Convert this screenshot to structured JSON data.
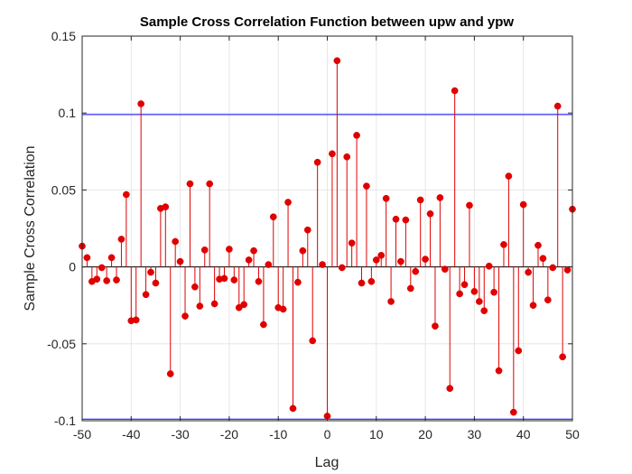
{
  "chart_data": {
    "type": "stem",
    "title": "Sample Cross Correlation Function between upw and ypw",
    "xlabel": "Lag",
    "ylabel": "Sample Cross Correlation",
    "xlim": [
      -50,
      50
    ],
    "ylim": [
      -0.1,
      0.15
    ],
    "xticks": [
      -50,
      -40,
      -30,
      -20,
      -10,
      0,
      10,
      20,
      30,
      40,
      50
    ],
    "yticks": [
      -0.1,
      -0.05,
      0,
      0.05,
      0.1,
      0.15
    ],
    "xtick_labels": [
      "-50",
      "-40",
      "-30",
      "-20",
      "-10",
      "0",
      "10",
      "20",
      "30",
      "40",
      "50"
    ],
    "ytick_labels": [
      "-0.1",
      "-0.05",
      "0",
      "0.05",
      "0.1",
      "0.15"
    ],
    "grid": true,
    "confidence_bounds": [
      0.099,
      -0.099
    ],
    "colors": {
      "stem": "#e00000",
      "bound": "#0000ff",
      "grid": "#e6e6e6",
      "axis": "#262626",
      "zero_line": "#000000"
    },
    "series": [
      {
        "x": [
          -50,
          -49,
          -48,
          -47,
          -46,
          -45,
          -44,
          -43,
          -42,
          -41,
          -40,
          -39,
          -38,
          -37,
          -36,
          -35,
          -34,
          -33,
          -32,
          -31,
          -30,
          -29,
          -28,
          -27,
          -26,
          -25,
          -24,
          -23,
          -22,
          -21,
          -20,
          -19,
          -18,
          -17,
          -16,
          -15,
          -14,
          -13,
          -12,
          -11,
          -10,
          -9,
          -8,
          -7,
          -6,
          -5,
          -4,
          -3,
          -2,
          -1,
          0,
          1,
          2,
          3,
          4,
          5,
          6,
          7,
          8,
          9,
          10,
          11,
          12,
          13,
          14,
          15,
          16,
          17,
          18,
          19,
          20,
          21,
          22,
          23,
          24,
          25,
          26,
          27,
          28,
          29,
          30,
          31,
          32,
          33,
          34,
          35,
          36,
          37,
          38,
          39,
          40,
          41,
          42,
          43,
          44,
          45,
          46,
          47,
          48,
          49,
          50
        ],
        "values": [
          0.0135,
          0.006,
          -0.0095,
          -0.008,
          -0.0005,
          -0.009,
          0.006,
          -0.0085,
          0.018,
          0.047,
          -0.035,
          -0.0345,
          0.106,
          -0.018,
          -0.0035,
          -0.0105,
          0.038,
          0.039,
          -0.0695,
          0.0165,
          0.0035,
          -0.032,
          0.054,
          -0.013,
          -0.0255,
          0.011,
          0.054,
          -0.024,
          -0.008,
          -0.0075,
          0.0115,
          -0.0085,
          -0.0265,
          -0.0245,
          0.0045,
          0.0105,
          -0.0095,
          -0.0375,
          0.0015,
          0.0325,
          -0.0265,
          -0.0275,
          0.042,
          -0.092,
          -0.01,
          0.0105,
          0.024,
          -0.048,
          0.068,
          0.0015,
          -0.097,
          0.0735,
          0.134,
          -0.0005,
          0.0715,
          0.0155,
          0.0855,
          -0.0105,
          0.0525,
          -0.0095,
          0.0045,
          0.0075,
          0.0445,
          -0.0225,
          0.031,
          0.0035,
          0.0305,
          -0.014,
          -0.003,
          0.0435,
          0.005,
          0.0345,
          -0.0385,
          0.045,
          -0.0015,
          -0.079,
          0.1145,
          -0.0175,
          -0.0115,
          0.04,
          -0.016,
          -0.0225,
          -0.0285,
          0.0005,
          -0.0165,
          -0.0675,
          0.0145,
          0.059,
          -0.0945,
          -0.0545,
          0.0405,
          -0.0035,
          -0.025,
          0.014,
          0.0055,
          -0.0215,
          -0.0005,
          0.1045,
          -0.0585,
          -0.002,
          0.0375
        ]
      }
    ]
  }
}
